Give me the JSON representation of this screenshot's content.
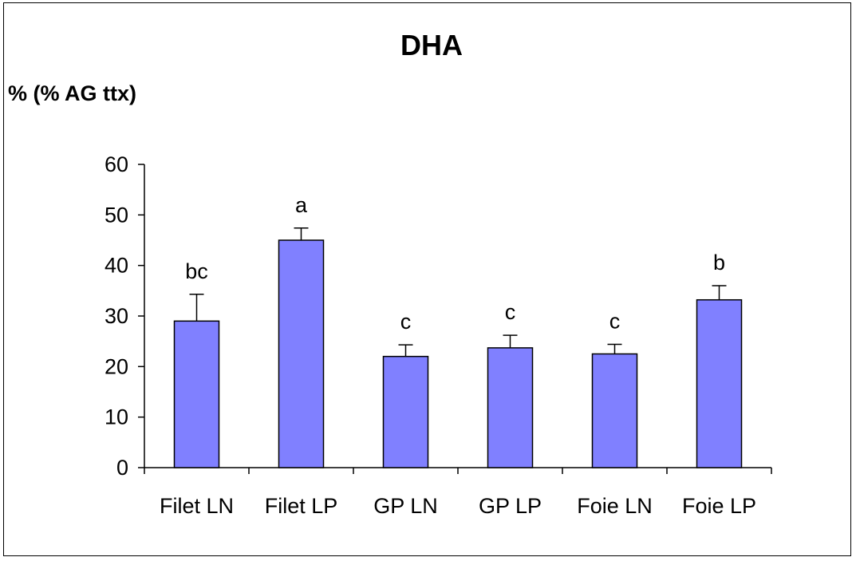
{
  "chart_data": {
    "type": "bar",
    "title": "DHA",
    "ylabel": "% (% AG ttx)",
    "xlabel": "",
    "categories": [
      "Filet LN",
      "Filet LP",
      "GP LN",
      "GP LP",
      "Foie LN",
      "Foie LP"
    ],
    "values": [
      29,
      45,
      22,
      23.7,
      22.5,
      33.2
    ],
    "errors": [
      5.3,
      2.4,
      2.3,
      2.5,
      1.9,
      2.8
    ],
    "significance_labels": [
      "bc",
      "a",
      "c",
      "c",
      "c",
      "b"
    ],
    "ylim": [
      0,
      60
    ],
    "yticks": [
      0,
      10,
      20,
      30,
      40,
      50,
      60
    ],
    "bar_color": "#8080ff",
    "grid": false,
    "legend": "none"
  }
}
